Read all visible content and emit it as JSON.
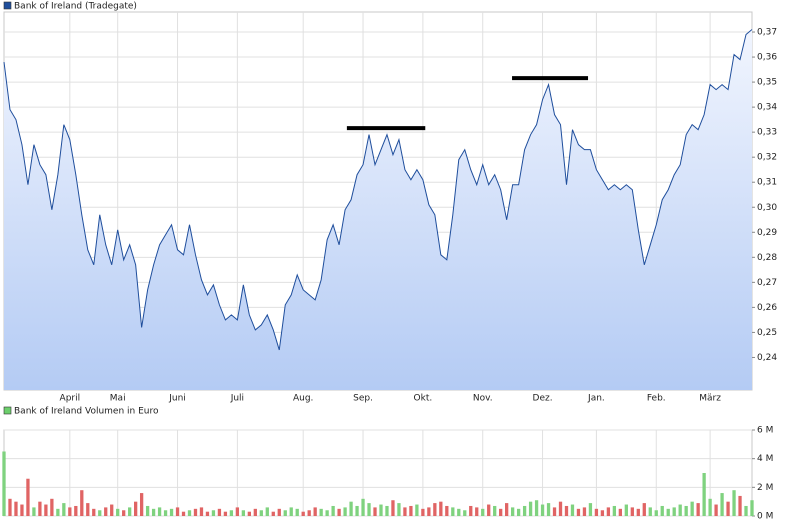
{
  "chart_data": [
    {
      "type": "area",
      "legend": "Bank of Ireland (Tradegate)",
      "color": "#1f4e9c",
      "categories": [
        null,
        null,
        null,
        null,
        null,
        null,
        null,
        null,
        null,
        null,
        null,
        "April",
        null,
        null,
        null,
        null,
        null,
        null,
        null,
        "Mai",
        null,
        null,
        null,
        null,
        null,
        null,
        null,
        null,
        null,
        "Juni",
        null,
        null,
        null,
        null,
        null,
        null,
        null,
        null,
        null,
        "Juli",
        null,
        null,
        null,
        null,
        null,
        null,
        null,
        null,
        null,
        null,
        "Aug.",
        null,
        null,
        null,
        null,
        null,
        null,
        null,
        null,
        null,
        "Sep.",
        null,
        null,
        null,
        null,
        null,
        null,
        null,
        null,
        null,
        "Okt.",
        null,
        null,
        null,
        null,
        null,
        null,
        null,
        null,
        null,
        "Nov.",
        null,
        null,
        null,
        null,
        null,
        null,
        null,
        null,
        null,
        "Dez.",
        null,
        null,
        null,
        null,
        null,
        null,
        null,
        null,
        "Jan.",
        null,
        null,
        null,
        null,
        null,
        null,
        null,
        null,
        null,
        "Feb.",
        null,
        null,
        null,
        null,
        null,
        null,
        null,
        null,
        "März",
        null,
        null,
        null,
        null,
        null,
        null,
        null
      ],
      "values": [
        0.358,
        0.339,
        0.335,
        0.325,
        0.309,
        0.325,
        0.317,
        0.313,
        0.299,
        0.313,
        0.333,
        0.327,
        0.313,
        0.297,
        0.283,
        0.277,
        0.297,
        0.285,
        0.277,
        0.291,
        0.279,
        0.285,
        0.277,
        0.252,
        0.267,
        0.277,
        0.285,
        0.289,
        0.293,
        0.283,
        0.281,
        0.293,
        0.281,
        0.271,
        0.265,
        0.269,
        0.261,
        0.255,
        0.257,
        0.255,
        0.269,
        0.257,
        0.251,
        0.253,
        0.257,
        0.251,
        0.243,
        0.261,
        0.265,
        0.273,
        0.267,
        0.265,
        0.263,
        0.271,
        0.287,
        0.293,
        0.285,
        0.299,
        0.303,
        0.313,
        0.317,
        0.329,
        0.317,
        0.323,
        0.329,
        0.321,
        0.327,
        0.315,
        0.311,
        0.315,
        0.311,
        0.301,
        0.297,
        0.281,
        0.279,
        0.297,
        0.319,
        0.323,
        0.315,
        0.309,
        0.317,
        0.309,
        0.313,
        0.307,
        0.295,
        0.309,
        0.309,
        0.323,
        0.329,
        0.333,
        0.343,
        0.349,
        0.337,
        0.333,
        0.309,
        0.331,
        0.325,
        0.323,
        0.323,
        0.315,
        0.311,
        0.307,
        0.309,
        0.307,
        0.309,
        0.307,
        0.291,
        0.277,
        0.285,
        0.293,
        0.303,
        0.307,
        0.313,
        0.317,
        0.329,
        0.333,
        0.331,
        0.337,
        0.349,
        0.347,
        0.349,
        0.347,
        0.361,
        0.359,
        0.369,
        0.371
      ],
      "ylim": [
        0.227,
        0.378
      ],
      "yticks": [
        {
          "value": 0.24,
          "label": "0,24"
        },
        {
          "value": 0.25,
          "label": "0,25"
        },
        {
          "value": 0.26,
          "label": "0,26"
        },
        {
          "value": 0.27,
          "label": "0,27"
        },
        {
          "value": 0.28,
          "label": "0,28"
        },
        {
          "value": 0.29,
          "label": "0,29"
        },
        {
          "value": 0.3,
          "label": "0,30"
        },
        {
          "value": 0.31,
          "label": "0,31"
        },
        {
          "value": 0.32,
          "label": "0,32"
        },
        {
          "value": 0.33,
          "label": "0,33"
        },
        {
          "value": 0.34,
          "label": "0,34"
        },
        {
          "value": 0.35,
          "label": "0,35"
        },
        {
          "value": 0.36,
          "label": "0,36"
        },
        {
          "value": 0.37,
          "label": "0,37"
        }
      ],
      "reference_lines": [
        {
          "value": 0.3316,
          "start": 57.3,
          "end": 70.4
        },
        {
          "value": 0.3516,
          "start": 84.9,
          "end": 97.6
        }
      ],
      "grid": true
    },
    {
      "type": "bar",
      "legend": "Bank of Ireland Volumen in Euro",
      "color": "#6ccf6c",
      "up_color": "#7fd27f",
      "down_color": "#e06464",
      "values": [
        4.5,
        1.2,
        1.0,
        0.8,
        2.6,
        0.6,
        1.0,
        0.8,
        1.2,
        0.5,
        0.9,
        0.6,
        0.7,
        1.8,
        0.9,
        0.5,
        0.4,
        0.6,
        0.8,
        0.5,
        0.4,
        0.6,
        1.0,
        1.6,
        0.7,
        0.5,
        0.6,
        0.4,
        0.5,
        0.6,
        0.3,
        0.4,
        0.5,
        0.6,
        0.3,
        0.4,
        0.5,
        0.3,
        0.4,
        0.6,
        0.4,
        0.3,
        0.5,
        0.4,
        0.6,
        0.3,
        0.5,
        0.4,
        0.6,
        0.5,
        0.3,
        0.4,
        0.6,
        0.5,
        0.4,
        0.7,
        0.5,
        0.6,
        1.0,
        0.7,
        1.2,
        0.9,
        0.6,
        0.8,
        0.7,
        1.1,
        0.9,
        0.6,
        0.7,
        0.8,
        0.5,
        0.6,
        0.9,
        1.0,
        0.7,
        0.6,
        0.5,
        0.4,
        0.7,
        0.6,
        0.5,
        0.8,
        0.7,
        0.5,
        0.9,
        0.6,
        0.5,
        0.7,
        1.0,
        1.1,
        0.8,
        0.9,
        0.6,
        1.0,
        0.7,
        0.8,
        0.5,
        0.6,
        0.9,
        0.5,
        0.4,
        0.6,
        0.7,
        0.5,
        0.8,
        0.6,
        0.5,
        0.9,
        0.6,
        0.4,
        0.7,
        0.5,
        0.6,
        0.8,
        0.7,
        1.0,
        0.9,
        3.0,
        1.2,
        0.8,
        1.6,
        1.0,
        1.8,
        1.4,
        0.7,
        1.1
      ],
      "ylim": [
        0,
        6
      ],
      "yticks": [
        {
          "value": 0,
          "label": "0 M"
        },
        {
          "value": 2,
          "label": "2 M"
        },
        {
          "value": 4,
          "label": "4 M"
        },
        {
          "value": 6,
          "label": "6 M"
        }
      ],
      "grid": true
    }
  ]
}
